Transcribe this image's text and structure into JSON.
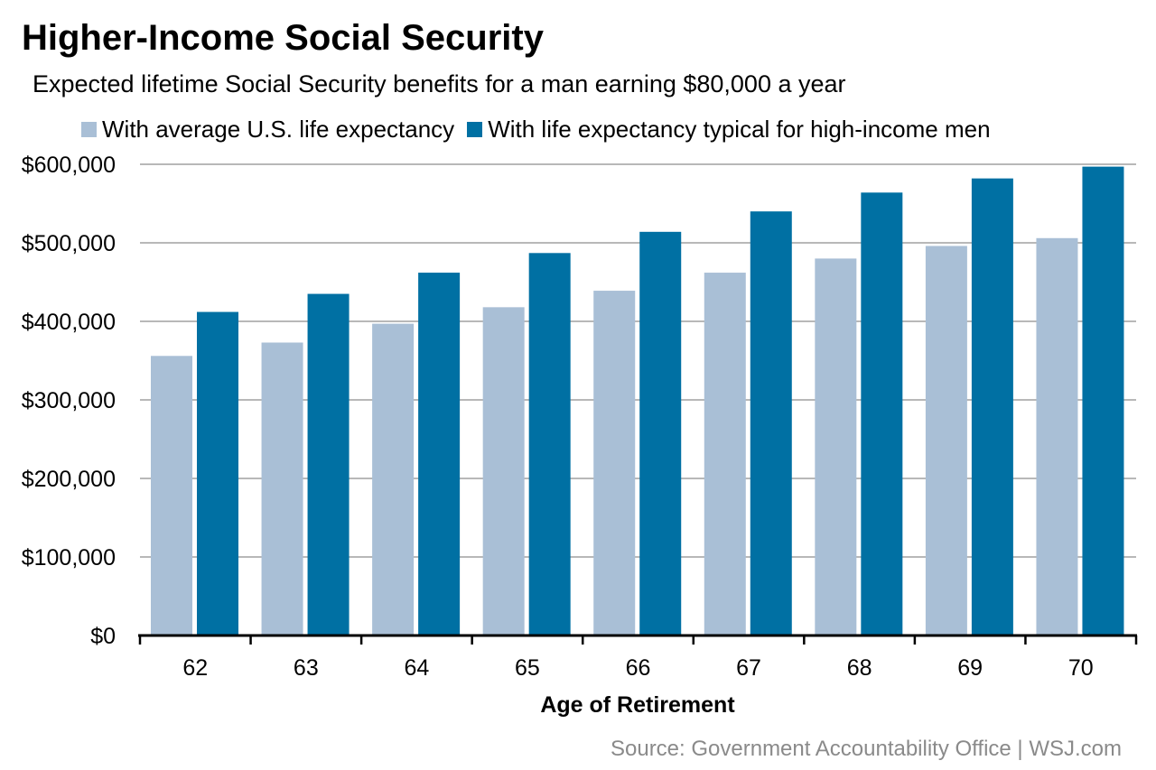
{
  "chart_data": {
    "type": "bar",
    "title": "Higher-Income Social Security",
    "subtitle": "Expected lifetime Social Security benefits for a man earning $80,000 a year",
    "xlabel": "Age of Retirement",
    "ylabel": "",
    "categories": [
      "62",
      "63",
      "64",
      "65",
      "66",
      "67",
      "68",
      "69",
      "70"
    ],
    "series": [
      {
        "name": "With average U.S. life expectancy",
        "color": "#a9bfd6",
        "values": [
          356000,
          373000,
          397000,
          418000,
          439000,
          462000,
          480000,
          496000,
          506000
        ]
      },
      {
        "name": "With life expectancy typical for high-income men",
        "color": "#0070a3",
        "values": [
          412000,
          435000,
          462000,
          487000,
          514000,
          540000,
          564000,
          582000,
          597000
        ]
      }
    ],
    "ylim": [
      0,
      600000
    ],
    "yticks": [
      0,
      100000,
      200000,
      300000,
      400000,
      500000,
      600000
    ],
    "ytick_labels": [
      "$0",
      "$100,000",
      "$200,000",
      "$300,000",
      "$400,000",
      "$500,000",
      "$600,000"
    ],
    "grid": true,
    "legend_position": "top",
    "source": "Source: Government Accountability Office  |  WSJ.com"
  }
}
